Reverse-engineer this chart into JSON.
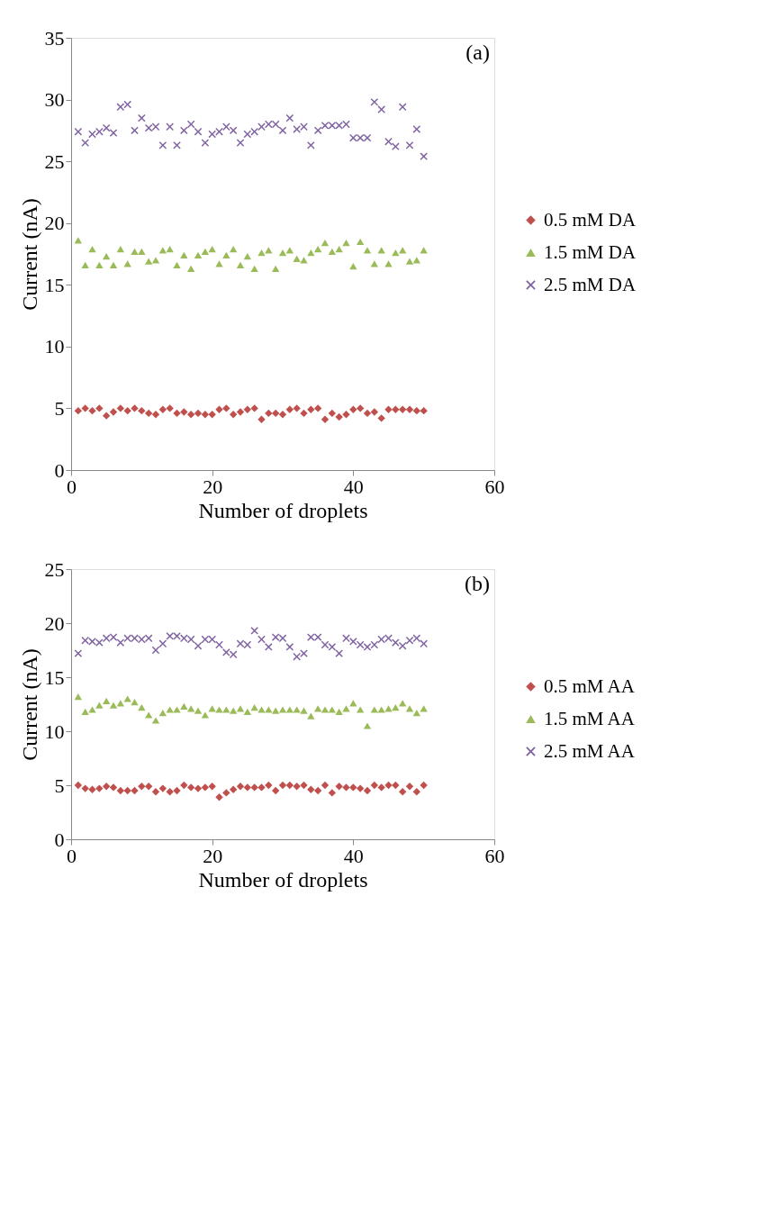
{
  "chart_data": [
    {
      "type": "scatter",
      "title": "(a)",
      "xlabel": "Number of droplets",
      "ylabel": "Current (nA)",
      "xlim": [
        0,
        60
      ],
      "xticks": [
        0,
        20,
        40,
        60
      ],
      "ylim": [
        0,
        35
      ],
      "yticks": [
        0,
        5,
        10,
        15,
        20,
        25,
        30,
        35
      ],
      "grid": false,
      "legend": "right",
      "x": [
        1,
        2,
        3,
        4,
        5,
        6,
        7,
        8,
        9,
        10,
        11,
        12,
        13,
        14,
        15,
        16,
        17,
        18,
        19,
        20,
        21,
        22,
        23,
        24,
        25,
        26,
        27,
        28,
        29,
        30,
        31,
        32,
        33,
        34,
        35,
        36,
        37,
        38,
        39,
        40,
        41,
        42,
        43,
        44,
        45,
        46,
        47,
        48,
        49,
        50
      ],
      "series": [
        {
          "name": "0.5 mM DA",
          "color": "#c0504d",
          "marker": "diamond",
          "values": [
            4.8,
            5.0,
            4.8,
            5.0,
            4.4,
            4.7,
            5.0,
            4.8,
            5.0,
            4.8,
            4.6,
            4.5,
            4.9,
            5.0,
            4.6,
            4.7,
            4.5,
            4.6,
            4.5,
            4.5,
            4.9,
            5.0,
            4.5,
            4.7,
            4.9,
            5.0,
            4.1,
            4.6,
            4.6,
            4.5,
            4.9,
            5.0,
            4.6,
            4.9,
            5.0,
            4.1,
            4.6,
            4.3,
            4.5,
            4.9,
            5.0,
            4.6,
            4.7,
            4.2,
            4.9,
            4.9,
            4.9,
            4.9,
            4.8,
            4.8
          ]
        },
        {
          "name": "1.5 mM DA",
          "color": "#9bbb59",
          "marker": "triangle",
          "values": [
            18.6,
            16.6,
            17.9,
            16.6,
            17.3,
            16.6,
            17.9,
            16.7,
            17.7,
            17.7,
            16.9,
            17.0,
            17.8,
            17.9,
            16.6,
            17.4,
            16.3,
            17.4,
            17.7,
            17.9,
            16.7,
            17.4,
            17.9,
            16.6,
            17.3,
            16.3,
            17.6,
            17.8,
            16.3,
            17.6,
            17.8,
            17.1,
            17.0,
            17.6,
            17.9,
            18.4,
            17.7,
            17.9,
            18.4,
            16.5,
            18.5,
            17.8,
            16.7,
            17.8,
            16.7,
            17.6,
            17.8,
            16.9,
            17.0,
            17.8
          ]
        },
        {
          "name": "2.5 mM DA",
          "color": "#8064a2",
          "marker": "cross",
          "values": [
            27.4,
            26.5,
            27.2,
            27.4,
            27.7,
            27.3,
            29.4,
            29.6,
            27.5,
            28.5,
            27.7,
            27.8,
            26.3,
            27.8,
            26.3,
            27.5,
            28.0,
            27.4,
            26.5,
            27.2,
            27.4,
            27.8,
            27.5,
            26.5,
            27.2,
            27.4,
            27.8,
            28.0,
            28.0,
            27.5,
            28.5,
            27.6,
            27.8,
            26.3,
            27.5,
            27.9,
            27.9,
            27.9,
            28.0,
            26.9,
            26.9,
            26.9,
            29.8,
            29.2,
            26.6,
            26.2,
            29.4,
            26.3,
            27.6,
            25.4
          ]
        }
      ]
    },
    {
      "type": "scatter",
      "title": "(b)",
      "xlabel": "Number of droplets",
      "ylabel": "Current (nA)",
      "xlim": [
        0,
        60
      ],
      "xticks": [
        0,
        20,
        40,
        60
      ],
      "ylim": [
        0,
        25
      ],
      "yticks": [
        0,
        5,
        10,
        15,
        20,
        25
      ],
      "grid": false,
      "legend": "right",
      "x": [
        1,
        2,
        3,
        4,
        5,
        6,
        7,
        8,
        9,
        10,
        11,
        12,
        13,
        14,
        15,
        16,
        17,
        18,
        19,
        20,
        21,
        22,
        23,
        24,
        25,
        26,
        27,
        28,
        29,
        30,
        31,
        32,
        33,
        34,
        35,
        36,
        37,
        38,
        39,
        40,
        41,
        42,
        43,
        44,
        45,
        46,
        47,
        48,
        49,
        50
      ],
      "series": [
        {
          "name": "0.5 mM AA",
          "color": "#c0504d",
          "marker": "diamond",
          "values": [
            5.0,
            4.7,
            4.6,
            4.7,
            4.9,
            4.8,
            4.5,
            4.5,
            4.5,
            4.9,
            4.9,
            4.4,
            4.7,
            4.4,
            4.5,
            5.0,
            4.8,
            4.7,
            4.8,
            4.9,
            3.9,
            4.3,
            4.6,
            4.9,
            4.8,
            4.8,
            4.8,
            5.0,
            4.5,
            5.0,
            5.0,
            4.9,
            5.0,
            4.6,
            4.5,
            5.0,
            4.3,
            4.9,
            4.8,
            4.8,
            4.7,
            4.5,
            5.0,
            4.8,
            5.0,
            5.0,
            4.4,
            4.9,
            4.4,
            5.0
          ]
        },
        {
          "name": "1.5 mM AA",
          "color": "#9bbb59",
          "marker": "triangle",
          "values": [
            13.2,
            11.8,
            12.0,
            12.4,
            12.8,
            12.4,
            12.6,
            13.0,
            12.7,
            12.2,
            11.5,
            11.0,
            11.7,
            12.0,
            12.0,
            12.3,
            12.1,
            11.9,
            11.5,
            12.1,
            12.0,
            12.0,
            11.9,
            12.1,
            11.8,
            12.2,
            12.0,
            12.0,
            11.9,
            12.0,
            12.0,
            12.0,
            11.9,
            11.4,
            12.1,
            12.0,
            12.0,
            11.8,
            12.1,
            12.6,
            12.0,
            10.5,
            12.0,
            12.0,
            12.1,
            12.2,
            12.6,
            12.1,
            11.7,
            12.1
          ]
        },
        {
          "name": "2.5 mM AA",
          "color": "#8064a2",
          "marker": "cross",
          "values": [
            17.2,
            18.4,
            18.3,
            18.2,
            18.6,
            18.7,
            18.2,
            18.6,
            18.6,
            18.5,
            18.6,
            17.5,
            18.1,
            18.8,
            18.8,
            18.6,
            18.5,
            17.9,
            18.5,
            18.5,
            18.0,
            17.3,
            17.1,
            18.1,
            18.0,
            19.3,
            18.5,
            17.8,
            18.7,
            18.6,
            17.8,
            16.9,
            17.2,
            18.7,
            18.7,
            18.0,
            17.8,
            17.2,
            18.6,
            18.3,
            18.0,
            17.8,
            18.0,
            18.5,
            18.6,
            18.2,
            17.9,
            18.4,
            18.6,
            18.1
          ]
        }
      ]
    }
  ]
}
